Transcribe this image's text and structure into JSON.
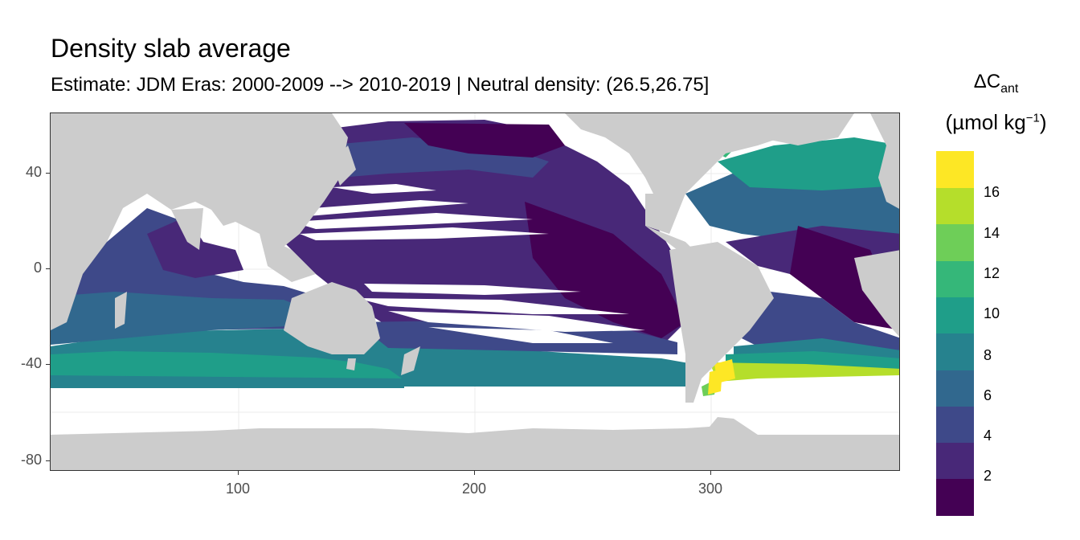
{
  "title": "Density slab average",
  "subtitle": "Estimate: JDM Eras: 2000-2009 --> 2010-2019 | Neutral density: (26.5,26.75]",
  "legend": {
    "title_line1_main": "ΔC",
    "title_line1_sub": "ant",
    "title_line2_pre": "(µmol kg",
    "title_line2_sup": "−1",
    "title_line2_post": ")",
    "labels": [
      "16",
      "14",
      "12",
      "10",
      "8",
      "6",
      "4",
      "2"
    ],
    "bins": [
      "#440154",
      "#482878",
      "#3e4989",
      "#31688e",
      "#26828e",
      "#1f9e89",
      "#35b779",
      "#6ece58",
      "#b5de2b",
      "#fde725"
    ]
  },
  "axes": {
    "x_ticks": [
      "100",
      "200",
      "300"
    ],
    "y_ticks": [
      "40",
      "0",
      "-40",
      "-80"
    ],
    "x_range": [
      20,
      380
    ],
    "y_range": [
      -85,
      65
    ]
  },
  "colors": {
    "land": "#cccccc",
    "no_data": "#ffffff",
    "grid": "#ebebeb"
  }
}
